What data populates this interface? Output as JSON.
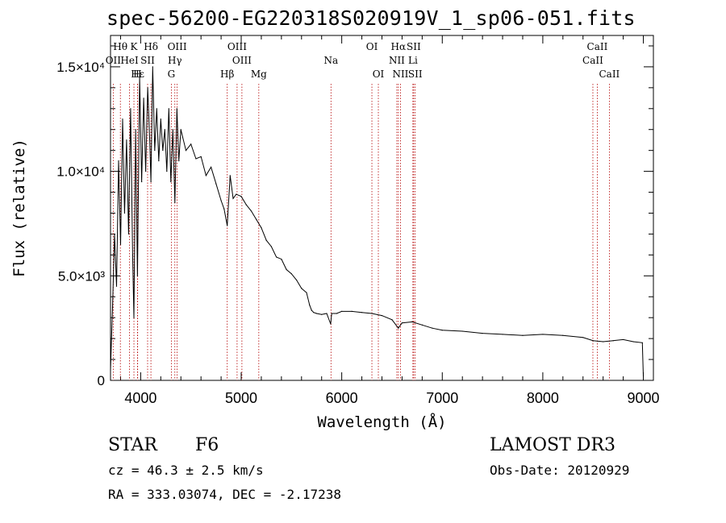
{
  "title": "spec-56200-EG220318S020919V_1_sp06-051.fits",
  "footer": {
    "object_class": "STAR",
    "subclass": "F6",
    "survey": "LAMOST DR3",
    "cz": "cz = 46.3 ± 2.5 km/s",
    "obs_date": "Obs-Date: 20120929",
    "coords": "RA = 333.03074, DEC =  -2.17238"
  },
  "chart_data": {
    "type": "line",
    "title": "spec-56200-EG220318S020919V_1_sp06-051.fits",
    "xlabel": "Wavelength (Å)",
    "ylabel": "Flux (relative)",
    "xlim": [
      3700,
      9100
    ],
    "ylim": [
      0,
      16500
    ],
    "xticks": [
      4000,
      5000,
      6000,
      7000,
      8000,
      9000
    ],
    "xtick_labels": [
      "4000",
      "5000",
      "6000",
      "7000",
      "8000",
      "9000"
    ],
    "yticks": [
      0,
      5000,
      10000,
      15000
    ],
    "ytick_labels": [
      "0",
      "5.0×10³",
      "1.0×10⁴",
      "1.5×10⁴"
    ],
    "grid": false,
    "series": [
      {
        "name": "flux",
        "x": [
          3700,
          3720,
          3740,
          3760,
          3780,
          3800,
          3820,
          3840,
          3860,
          3880,
          3900,
          3920,
          3933,
          3950,
          3968,
          3990,
          4010,
          4030,
          4050,
          4070,
          4090,
          4102,
          4120,
          4140,
          4160,
          4180,
          4200,
          4220,
          4240,
          4260,
          4280,
          4300,
          4320,
          4340,
          4360,
          4380,
          4400,
          4450,
          4500,
          4550,
          4600,
          4650,
          4700,
          4750,
          4800,
          4830,
          4861,
          4890,
          4920,
          4950,
          5000,
          5050,
          5100,
          5150,
          5200,
          5250,
          5300,
          5350,
          5400,
          5450,
          5500,
          5550,
          5600,
          5650,
          5680,
          5700,
          5720,
          5750,
          5800,
          5850,
          5890,
          5900,
          5950,
          6000,
          6100,
          6200,
          6300,
          6400,
          6500,
          6563,
          6600,
          6700,
          6800,
          6900,
          7000,
          7200,
          7400,
          7600,
          7800,
          8000,
          8200,
          8400,
          8500,
          8600,
          8700,
          8800,
          8900,
          8990,
          9000
        ],
        "y": [
          500,
          3500,
          7000,
          4500,
          10500,
          6500,
          12500,
          8000,
          11500,
          7000,
          13000,
          6000,
          3000,
          12000,
          5000,
          14500,
          9500,
          13500,
          10000,
          14000,
          11500,
          9500,
          15000,
          11000,
          13000,
          10500,
          12500,
          11000,
          12000,
          10000,
          13000,
          9500,
          12000,
          8500,
          13000,
          10500,
          12000,
          11000,
          11300,
          10600,
          10700,
          9800,
          10200,
          9400,
          8600,
          8200,
          7400,
          9800,
          8700,
          8900,
          8800,
          8400,
          8100,
          7700,
          7300,
          6700,
          6400,
          5900,
          5800,
          5300,
          5100,
          4800,
          4400,
          4200,
          3600,
          3350,
          3250,
          3200,
          3150,
          3200,
          2700,
          3200,
          3200,
          3300,
          3300,
          3250,
          3200,
          3100,
          2900,
          2500,
          2750,
          2800,
          2650,
          2500,
          2400,
          2350,
          2250,
          2200,
          2150,
          2200,
          2150,
          2050,
          1900,
          1850,
          1900,
          1950,
          1850,
          1800,
          200
        ]
      }
    ],
    "lines": [
      {
        "label": "Hθ",
        "wave": 3798,
        "row": 1
      },
      {
        "label": "OII",
        "wave": 3727,
        "row": 2
      },
      {
        "label": "K",
        "wave": 3933,
        "row": 1
      },
      {
        "label": "HeI",
        "wave": 3889,
        "row": 2
      },
      {
        "label": "Hδ",
        "wave": 4102,
        "row": 1
      },
      {
        "label": "SII",
        "wave": 4069,
        "row": 2
      },
      {
        "label": "OIII",
        "wave": 4363,
        "row": 1
      },
      {
        "label": "Hγ",
        "wave": 4340,
        "row": 2
      },
      {
        "label": "G",
        "wave": 4305,
        "row": 3
      },
      {
        "label": "Hε",
        "wave": 3970,
        "row": 3
      },
      {
        "label": "H",
        "wave": 3968,
        "row": 3
      },
      {
        "label": "OIII",
        "wave": 4959,
        "row": 1
      },
      {
        "label": "OIII",
        "wave": 5007,
        "row": 2
      },
      {
        "label": "Hβ",
        "wave": 4861,
        "row": 3
      },
      {
        "label": "Mg",
        "wave": 5175,
        "row": 3
      },
      {
        "label": "Na",
        "wave": 5893,
        "row": 2
      },
      {
        "label": "OI",
        "wave": 6300,
        "row": 1
      },
      {
        "label": "OI",
        "wave": 6364,
        "row": 3
      },
      {
        "label": "Hα",
        "wave": 6563,
        "row": 1
      },
      {
        "label": "SII",
        "wave": 6716,
        "row": 1
      },
      {
        "label": "NII",
        "wave": 6548,
        "row": 2
      },
      {
        "label": "Li",
        "wave": 6708,
        "row": 2
      },
      {
        "label": "NII",
        "wave": 6584,
        "row": 3
      },
      {
        "label": "SII",
        "wave": 6731,
        "row": 3
      },
      {
        "label": "CaII",
        "wave": 8542,
        "row": 1
      },
      {
        "label": "CaII",
        "wave": 8498,
        "row": 2
      },
      {
        "label": "CaII",
        "wave": 8662,
        "row": 3
      }
    ]
  }
}
